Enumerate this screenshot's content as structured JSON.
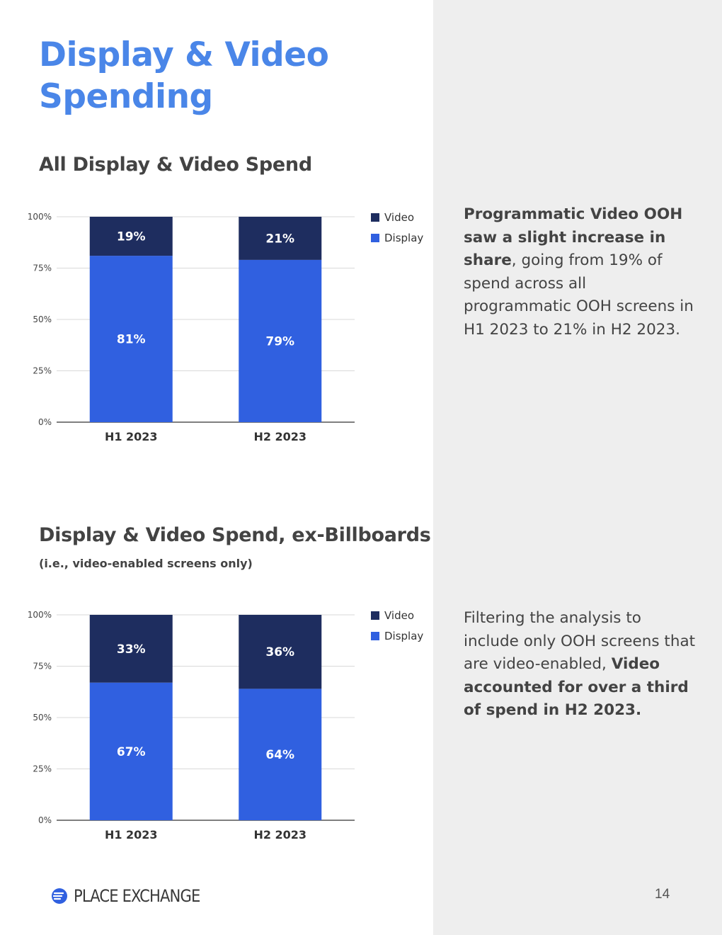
{
  "page": {
    "title": "Display & Video Spending",
    "page_number": "14",
    "brand": "PLACE EXCHANGE"
  },
  "sections": [
    {
      "title": "All Display & Video Spend",
      "subtitle": "",
      "note": [
        {
          "text": "Programmatic Video OOH saw a slight increase in share",
          "bold": true
        },
        {
          "text": ", going from 19% of spend across all programmatic OOH screens in H1 2023 to 21% in H2 2023.",
          "bold": false
        }
      ]
    },
    {
      "title": "Display & Video Spend, ex-Billboards",
      "subtitle": "(i.e., video-enabled screens only)",
      "note": [
        {
          "text": "Filtering the analysis to include only OOH screens that are video-enabled, ",
          "bold": false
        },
        {
          "text": "Video accounted for over a third of spend in H2 2023.",
          "bold": true
        }
      ]
    }
  ],
  "colors": {
    "video": "#1e2d5f",
    "display": "#3060e0",
    "title": "#4a86e8"
  },
  "chart_data": [
    {
      "type": "bar",
      "stacked": true,
      "title": "All Display & Video Spend",
      "categories": [
        "H1 2023",
        "H2 2023"
      ],
      "series": [
        {
          "name": "Display",
          "values": [
            81,
            79
          ],
          "labels": [
            "81%",
            "79%"
          ]
        },
        {
          "name": "Video",
          "values": [
            19,
            21
          ],
          "labels": [
            "19%",
            "21%"
          ]
        }
      ],
      "ylim": [
        0,
        100
      ],
      "yticks": [
        "0%",
        "25%",
        "50%",
        "75%",
        "100%"
      ],
      "legend": [
        "Video",
        "Display"
      ],
      "legend_position": "top-right"
    },
    {
      "type": "bar",
      "stacked": true,
      "title": "Display & Video Spend, ex-Billboards",
      "categories": [
        "H1 2023",
        "H2 2023"
      ],
      "series": [
        {
          "name": "Display",
          "values": [
            67,
            64
          ],
          "labels": [
            "67%",
            "64%"
          ]
        },
        {
          "name": "Video",
          "values": [
            33,
            36
          ],
          "labels": [
            "33%",
            "36%"
          ]
        }
      ],
      "ylim": [
        0,
        100
      ],
      "yticks": [
        "0%",
        "25%",
        "50%",
        "75%",
        "100%"
      ],
      "legend": [
        "Video",
        "Display"
      ],
      "legend_position": "top-right"
    }
  ]
}
